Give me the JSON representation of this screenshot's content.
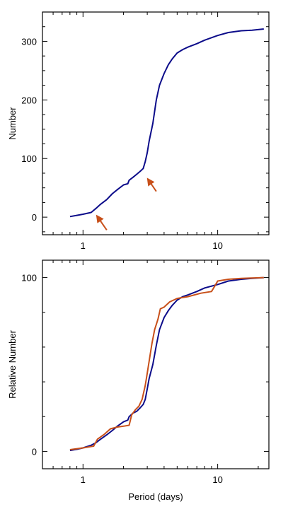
{
  "chart_data": [
    {
      "type": "line",
      "xscale": "log",
      "xlim": [
        0.5,
        24
      ],
      "ylim": [
        -30,
        350
      ],
      "xlabel": "",
      "ylabel": "Number",
      "x_ticks": [
        1,
        10
      ],
      "x_tick_labels": [
        "1",
        "10"
      ],
      "y_ticks": [
        0,
        100,
        200,
        300
      ],
      "y_tick_labels": [
        "0",
        "100",
        "200",
        "300"
      ],
      "colors": {
        "blue": "#0c0c8a",
        "orange": "#c8501a"
      },
      "series": [
        {
          "color": "#0c0c8a",
          "x": [
            0.8,
            0.9,
            1.0,
            1.15,
            1.25,
            1.35,
            1.5,
            1.65,
            1.8,
            2.0,
            2.15,
            2.2,
            2.35,
            2.5,
            2.65,
            2.8,
            2.9,
            3.0,
            3.1,
            3.3,
            3.5,
            3.7,
            4.0,
            4.3,
            4.6,
            5.0,
            5.5,
            6.0,
            7.0,
            8.0,
            10.0,
            12.0,
            15.0,
            18.0,
            22.0
          ],
          "y": [
            1,
            3,
            5,
            8,
            15,
            22,
            30,
            40,
            47,
            55,
            57,
            63,
            68,
            73,
            78,
            83,
            95,
            110,
            130,
            160,
            200,
            225,
            245,
            260,
            270,
            280,
            286,
            290,
            296,
            302,
            310,
            315,
            318,
            319,
            321
          ]
        }
      ],
      "annotations": [
        {
          "type": "arrow",
          "color": "#c8501a",
          "from": [
            1.5,
            -22
          ],
          "to": [
            1.27,
            2
          ]
        },
        {
          "type": "arrow",
          "color": "#c8501a",
          "from": [
            3.5,
            44
          ],
          "to": [
            3.03,
            65
          ]
        }
      ]
    },
    {
      "type": "line",
      "xscale": "log",
      "xlim": [
        0.5,
        24
      ],
      "ylim": [
        -10,
        110
      ],
      "xlabel": "Period (days)",
      "ylabel": "Relative Number",
      "x_ticks": [
        1,
        10
      ],
      "x_tick_labels": [
        "1",
        "10"
      ],
      "y_ticks": [
        0,
        100
      ],
      "y_tick_labels": [
        "0",
        "100"
      ],
      "series": [
        {
          "color": "#0c0c8a",
          "x": [
            0.8,
            0.9,
            1.0,
            1.15,
            1.25,
            1.35,
            1.5,
            1.65,
            1.8,
            2.0,
            2.15,
            2.2,
            2.35,
            2.5,
            2.65,
            2.8,
            2.9,
            3.0,
            3.1,
            3.3,
            3.5,
            3.7,
            4.0,
            4.3,
            4.6,
            5.0,
            5.5,
            6.0,
            7.0,
            8.0,
            10.0,
            12.0,
            15.0,
            18.0,
            22.0
          ],
          "y": [
            0.5,
            1.2,
            2,
            3.5,
            5,
            7,
            9.5,
            12,
            14.5,
            17,
            18,
            20,
            22,
            23,
            25,
            27,
            30,
            36,
            42,
            50,
            61,
            70,
            77,
            81,
            84,
            87,
            89,
            90,
            92,
            94,
            96,
            98,
            99,
            99.5,
            100
          ]
        },
        {
          "color": "#c8501a",
          "x": [
            0.8,
            1.0,
            1.2,
            1.28,
            1.45,
            1.6,
            1.8,
            2.0,
            2.2,
            2.3,
            2.45,
            2.6,
            2.75,
            2.9,
            3.0,
            3.1,
            3.25,
            3.4,
            3.6,
            3.75,
            4.0,
            4.4,
            5.0,
            6.0,
            7.5,
            9.0,
            9.5,
            10.0,
            12.0,
            15.0,
            22.0
          ],
          "y": [
            1,
            2,
            3,
            7,
            10,
            13,
            14,
            14.5,
            15,
            21,
            24,
            26,
            30,
            38,
            45,
            52,
            62,
            70,
            76,
            82,
            83,
            86,
            88,
            89,
            91,
            92,
            95,
            98,
            99,
            99.5,
            100
          ]
        }
      ],
      "annotations": []
    }
  ]
}
